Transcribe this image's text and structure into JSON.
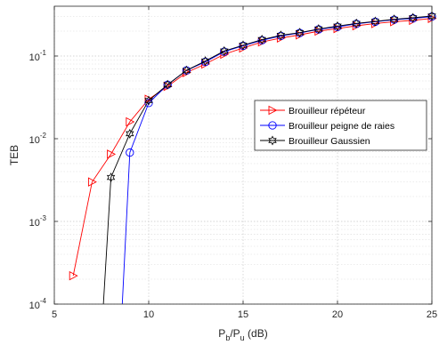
{
  "chart_data": {
    "type": "line",
    "xlabel": "P_b/P_u (dB)",
    "ylabel": "TEB",
    "xlim": [
      5,
      25
    ],
    "ylim": [
      0.0001,
      0.4
    ],
    "yscale": "log",
    "grid": true,
    "minor_grid": true,
    "legend_position": "center-right",
    "x_ticks": [
      "5",
      "10",
      "15",
      "20",
      "25"
    ],
    "y_ticks": [
      {
        "value": 0.0001,
        "base": "10",
        "exp": "-4"
      },
      {
        "value": 0.001,
        "base": "10",
        "exp": "-3"
      },
      {
        "value": 0.01,
        "base": "10",
        "exp": "-2"
      },
      {
        "value": 0.1,
        "base": "10",
        "exp": "-1"
      }
    ],
    "series": [
      {
        "name": "Brouilleur répéteur",
        "color": "#ff0000",
        "marker": "triangle-right",
        "x": [
          6,
          7,
          8,
          9,
          10,
          11,
          12,
          13,
          14,
          15,
          16,
          17,
          18,
          19,
          20,
          21,
          22,
          23,
          24,
          25
        ],
        "y": [
          0.00022,
          0.003,
          0.0065,
          0.016,
          0.03,
          0.043,
          0.063,
          0.08,
          0.105,
          0.125,
          0.148,
          0.165,
          0.18,
          0.2,
          0.215,
          0.232,
          0.247,
          0.26,
          0.27,
          0.285
        ]
      },
      {
        "name": "Brouilleur peigne de raies",
        "color": "#0000ff",
        "marker": "circle",
        "x": [
          8.6,
          9,
          10,
          11,
          12,
          13,
          14,
          15,
          16,
          17,
          18,
          19,
          20,
          21,
          22,
          23,
          24,
          25
        ],
        "y": [
          0.0001,
          0.0068,
          0.027,
          0.045,
          0.067,
          0.085,
          0.113,
          0.133,
          0.155,
          0.175,
          0.19,
          0.21,
          0.225,
          0.245,
          0.26,
          0.275,
          0.285,
          0.3
        ]
      },
      {
        "name": "Brouilleur Gaussien",
        "color": "#000000",
        "marker": "hexagram",
        "x": [
          7.6,
          8,
          9,
          10,
          11,
          12,
          13,
          14,
          15,
          16,
          17,
          18,
          19,
          20,
          21,
          22,
          23,
          24,
          25
        ],
        "y": [
          0.0001,
          0.0034,
          0.0115,
          0.029,
          0.045,
          0.067,
          0.087,
          0.115,
          0.135,
          0.158,
          0.178,
          0.192,
          0.212,
          0.23,
          0.248,
          0.262,
          0.278,
          0.29,
          0.305
        ]
      }
    ]
  }
}
